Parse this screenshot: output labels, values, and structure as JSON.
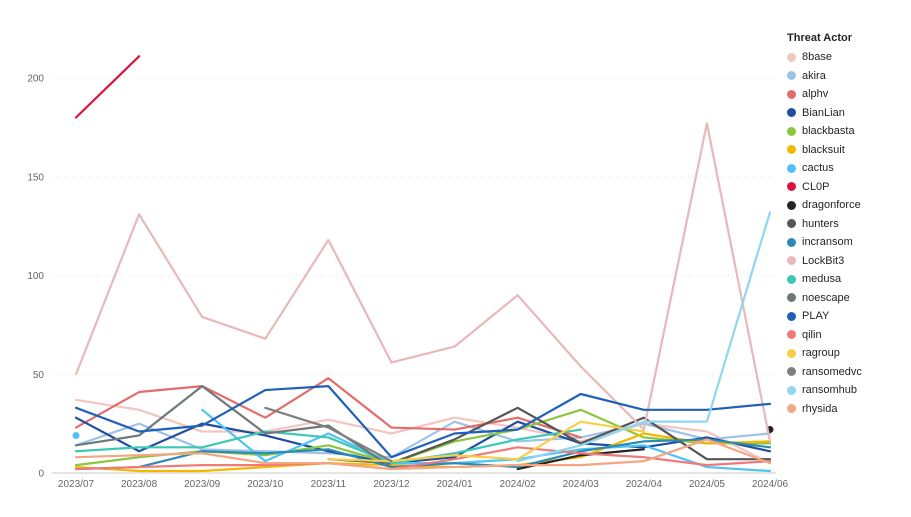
{
  "chart_data": {
    "type": "line",
    "title": "",
    "xlabel": "",
    "ylabel": "",
    "ylim": [
      0,
      220
    ],
    "yticks": [
      0,
      50,
      100,
      150,
      200
    ],
    "grid": true,
    "legend_title": "Threat Actor",
    "legend_position": "right",
    "categories": [
      "2023/07",
      "2023/08",
      "2023/09",
      "2023/10",
      "2023/11",
      "2023/12",
      "2024/01",
      "2024/02",
      "2024/03",
      "2024/04",
      "2024/05",
      "2024/06"
    ],
    "series": [
      {
        "name": "8base",
        "color": "#f2c6c0",
        "values": [
          37,
          32,
          21,
          21,
          27,
          20,
          28,
          23,
          16,
          25,
          21,
          5
        ]
      },
      {
        "name": "akira",
        "color": "#9dc3e6",
        "values": [
          14,
          25,
          12,
          11,
          10,
          8,
          26,
          16,
          18,
          25,
          17,
          20
        ]
      },
      {
        "name": "alphv",
        "color": "#e46c6c",
        "values": [
          23,
          41,
          44,
          28,
          48,
          23,
          22,
          28,
          18,
          null,
          null,
          null
        ]
      },
      {
        "name": "BianLian",
        "color": "#1f4e9e",
        "values": [
          28,
          11,
          25,
          19,
          11,
          5,
          8,
          26,
          15,
          13,
          18,
          11
        ]
      },
      {
        "name": "blackbasta",
        "color": "#8cc63f",
        "values": [
          4,
          8,
          11,
          9,
          14,
          5,
          16,
          22,
          32,
          18,
          15,
          15
        ]
      },
      {
        "name": "blacksuit",
        "color": "#f5b800",
        "values": [
          3,
          1,
          1,
          3,
          5,
          4,
          3,
          4,
          8,
          20,
          15,
          16
        ]
      },
      {
        "name": "cactus",
        "color": "#4fc3f7",
        "values": [
          19,
          null,
          32,
          6,
          20,
          5,
          5,
          7,
          12,
          14,
          3,
          1
        ]
      },
      {
        "name": "CL0P",
        "color": "#dc143c",
        "values": [
          180,
          211,
          null,
          null,
          null,
          null,
          null,
          null,
          null,
          null,
          null,
          null
        ]
      },
      {
        "name": "dragonforce",
        "color": "#252423",
        "values": [
          null,
          null,
          null,
          null,
          null,
          null,
          null,
          2,
          9,
          12,
          null,
          22
        ]
      },
      {
        "name": "hunters",
        "color": "#555555",
        "values": [
          null,
          null,
          null,
          null,
          7,
          5,
          17,
          33,
          15,
          28,
          7,
          7
        ]
      },
      {
        "name": "incransom",
        "color": "#2a8bb5",
        "values": [
          2,
          3,
          11,
          10,
          12,
          3,
          5,
          3,
          11,
          16,
          17,
          13
        ]
      },
      {
        "name": "LockBit3",
        "color": "#e9b8bb",
        "values": [
          50,
          131,
          79,
          68,
          118,
          56,
          64,
          90,
          54,
          22,
          177,
          16
        ]
      },
      {
        "name": "medusa",
        "color": "#3cc8b4",
        "values": [
          11,
          13,
          13,
          21,
          18,
          5,
          10,
          17,
          22,
          null,
          null,
          null
        ]
      },
      {
        "name": "noescape",
        "color": "#6f7878",
        "values": [
          14,
          19,
          44,
          20,
          24,
          3,
          null,
          null,
          null,
          null,
          null,
          null
        ]
      },
      {
        "name": "PLAY",
        "color": "#2060b8",
        "values": [
          33,
          21,
          24,
          42,
          44,
          8,
          20,
          22,
          40,
          32,
          32,
          35
        ]
      },
      {
        "name": "qilin",
        "color": "#f07a7a",
        "values": [
          2,
          3,
          4,
          4,
          5,
          2,
          7,
          13,
          10,
          8,
          4,
          6
        ]
      },
      {
        "name": "ragroup",
        "color": "#f7cf47",
        "values": [
          null,
          null,
          null,
          null,
          7,
          6,
          9,
          7,
          26,
          21,
          null,
          null
        ]
      },
      {
        "name": "ransomedvc",
        "color": "#7f7f7f",
        "values": [
          null,
          null,
          null,
          33,
          23,
          6,
          null,
          null,
          null,
          null,
          null,
          null
        ]
      },
      {
        "name": "ransomhub",
        "color": "#8fd6f0",
        "values": [
          null,
          null,
          null,
          null,
          null,
          null,
          null,
          6,
          14,
          26,
          26,
          132
        ]
      },
      {
        "name": "rhysida",
        "color": "#f4a582",
        "values": [
          8,
          9,
          10,
          5,
          5,
          2,
          3,
          4,
          4,
          6,
          17,
          5
        ]
      }
    ]
  }
}
